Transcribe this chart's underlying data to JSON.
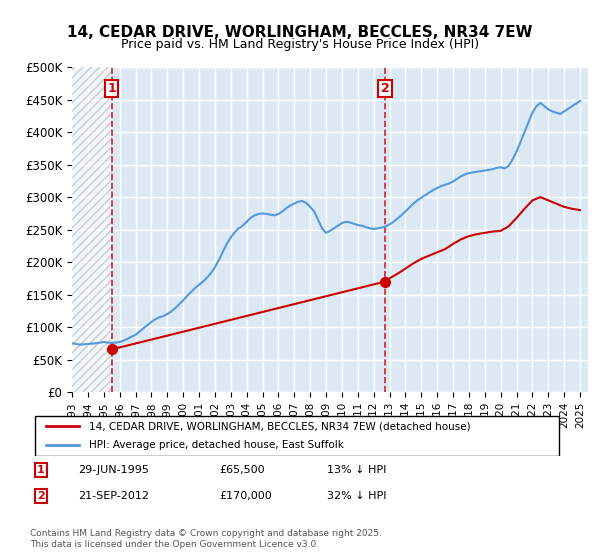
{
  "title": "14, CEDAR DRIVE, WORLINGHAM, BECCLES, NR34 7EW",
  "subtitle": "Price paid vs. HM Land Registry's House Price Index (HPI)",
  "ylabel_ticks": [
    "£0",
    "£50K",
    "£100K",
    "£150K",
    "£200K",
    "£250K",
    "£300K",
    "£350K",
    "£400K",
    "£450K",
    "£500K"
  ],
  "ylim": [
    0,
    500000
  ],
  "xlim_start": 1993.0,
  "xlim_end": 2025.5,
  "sale1_date": 1995.49,
  "sale1_price": 65500,
  "sale1_label": "1",
  "sale1_info": "29-JUN-1995    £65,500    13% ↓ HPI",
  "sale2_date": 2012.72,
  "sale2_price": 170000,
  "sale2_label": "2",
  "sale2_info": "21-SEP-2012    £170,000    32% ↓ HPI",
  "legend_line1": "14, CEDAR DRIVE, WORLINGHAM, BECCLES, NR34 7EW (detached house)",
  "legend_line2": "HPI: Average price, detached house, East Suffolk",
  "footer": "Contains HM Land Registry data © Crown copyright and database right 2025.\nThis data is licensed under the Open Government Licence v3.0.",
  "plot_bg_color": "#dce9f5",
  "hatch_color": "#b0b0b0",
  "red_line_color": "#cc0000",
  "blue_line_color": "#5599dd",
  "grid_color": "#ffffff",
  "marker_box_color": "#cc0000",
  "hpi_data_x": [
    1993.0,
    1993.25,
    1993.5,
    1993.75,
    1994.0,
    1994.25,
    1994.5,
    1994.75,
    1995.0,
    1995.25,
    1995.5,
    1995.75,
    1996.0,
    1996.25,
    1996.5,
    1996.75,
    1997.0,
    1997.25,
    1997.5,
    1997.75,
    1998.0,
    1998.25,
    1998.5,
    1998.75,
    1999.0,
    1999.25,
    1999.5,
    1999.75,
    2000.0,
    2000.25,
    2000.5,
    2000.75,
    2001.0,
    2001.25,
    2001.5,
    2001.75,
    2002.0,
    2002.25,
    2002.5,
    2002.75,
    2003.0,
    2003.25,
    2003.5,
    2003.75,
    2004.0,
    2004.25,
    2004.5,
    2004.75,
    2005.0,
    2005.25,
    2005.5,
    2005.75,
    2006.0,
    2006.25,
    2006.5,
    2006.75,
    2007.0,
    2007.25,
    2007.5,
    2007.75,
    2008.0,
    2008.25,
    2008.5,
    2008.75,
    2009.0,
    2009.25,
    2009.5,
    2009.75,
    2010.0,
    2010.25,
    2010.5,
    2010.75,
    2011.0,
    2011.25,
    2011.5,
    2011.75,
    2012.0,
    2012.25,
    2012.5,
    2012.75,
    2013.0,
    2013.25,
    2013.5,
    2013.75,
    2014.0,
    2014.25,
    2014.5,
    2014.75,
    2015.0,
    2015.25,
    2015.5,
    2015.75,
    2016.0,
    2016.25,
    2016.5,
    2016.75,
    2017.0,
    2017.25,
    2017.5,
    2017.75,
    2018.0,
    2018.25,
    2018.5,
    2018.75,
    2019.0,
    2019.25,
    2019.5,
    2019.75,
    2020.0,
    2020.25,
    2020.5,
    2020.75,
    2021.0,
    2021.25,
    2021.5,
    2021.75,
    2022.0,
    2022.25,
    2022.5,
    2022.75,
    2023.0,
    2023.25,
    2023.5,
    2023.75,
    2024.0,
    2024.25,
    2024.5,
    2024.75,
    2025.0
  ],
  "hpi_data_y": [
    75000,
    74000,
    73000,
    73500,
    74000,
    74500,
    75000,
    76000,
    77000,
    76000,
    75500,
    76000,
    77000,
    79000,
    82000,
    85000,
    88000,
    93000,
    98000,
    103000,
    108000,
    112000,
    115000,
    117000,
    120000,
    124000,
    129000,
    135000,
    141000,
    148000,
    154000,
    160000,
    165000,
    170000,
    176000,
    183000,
    192000,
    203000,
    216000,
    228000,
    238000,
    246000,
    252000,
    256000,
    262000,
    268000,
    272000,
    274000,
    275000,
    274000,
    273000,
    272000,
    274000,
    278000,
    283000,
    287000,
    290000,
    293000,
    294000,
    291000,
    285000,
    278000,
    265000,
    252000,
    245000,
    248000,
    252000,
    256000,
    260000,
    262000,
    261000,
    259000,
    257000,
    256000,
    254000,
    252000,
    251000,
    252000,
    253000,
    255000,
    258000,
    262000,
    267000,
    272000,
    278000,
    284000,
    290000,
    295000,
    299000,
    303000,
    307000,
    311000,
    314000,
    317000,
    319000,
    321000,
    324000,
    328000,
    332000,
    335000,
    337000,
    338000,
    339000,
    340000,
    341000,
    342000,
    343000,
    345000,
    346000,
    344000,
    348000,
    358000,
    370000,
    385000,
    400000,
    415000,
    430000,
    440000,
    445000,
    440000,
    435000,
    432000,
    430000,
    428000,
    432000,
    436000,
    440000,
    444000,
    448000
  ],
  "price_data_x": [
    1995.49,
    2012.72,
    2013.0,
    2013.5,
    2014.0,
    2014.5,
    2015.0,
    2015.5,
    2016.0,
    2016.5,
    2017.0,
    2017.5,
    2018.0,
    2018.5,
    2019.0,
    2019.5,
    2020.0,
    2020.5,
    2021.0,
    2021.5,
    2022.0,
    2022.5,
    2023.0,
    2023.5,
    2024.0,
    2024.5,
    2025.0
  ],
  "price_data_y": [
    65500,
    170000,
    175000,
    182000,
    190000,
    198000,
    205000,
    210000,
    215000,
    220000,
    228000,
    235000,
    240000,
    243000,
    245000,
    247000,
    248000,
    255000,
    268000,
    282000,
    295000,
    300000,
    295000,
    290000,
    285000,
    282000,
    280000
  ]
}
